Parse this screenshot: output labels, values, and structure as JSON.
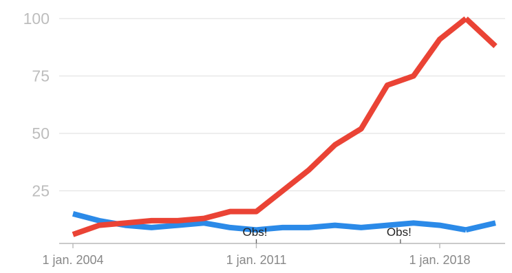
{
  "chart_data": {
    "type": "line",
    "title": "",
    "xlabel": "",
    "ylabel": "",
    "ylim": [
      0,
      100
    ],
    "y_ticks": [
      "25",
      "50",
      "75",
      "100"
    ],
    "x_ticks": [
      {
        "label": "1 jan. 2004",
        "x": 2004
      },
      {
        "label": "1 jan. 2011",
        "x": 2011
      },
      {
        "label": "1 jan. 2018",
        "x": 2018
      }
    ],
    "grid": true,
    "legend": "none",
    "x": [
      2004,
      2005,
      2006,
      2007,
      2008,
      2009,
      2010,
      2011,
      2012,
      2013,
      2014,
      2015,
      2016,
      2017,
      2018,
      2019
    ],
    "series": [
      {
        "color": "#ea4335",
        "values": [
          6,
          10,
          11,
          12,
          12,
          13,
          16,
          16,
          25,
          34,
          45,
          52,
          71,
          75,
          91,
          100
        ]
      },
      {
        "color": "#2b8ae8",
        "values": [
          15,
          12,
          10,
          9,
          10,
          11,
          9,
          8,
          9,
          9,
          10,
          9,
          10,
          11,
          10,
          8
        ]
      }
    ],
    "annotations": [
      {
        "label": "Obs!",
        "x": 2011
      },
      {
        "label": "Obs!",
        "x": 2016.5
      }
    ]
  }
}
